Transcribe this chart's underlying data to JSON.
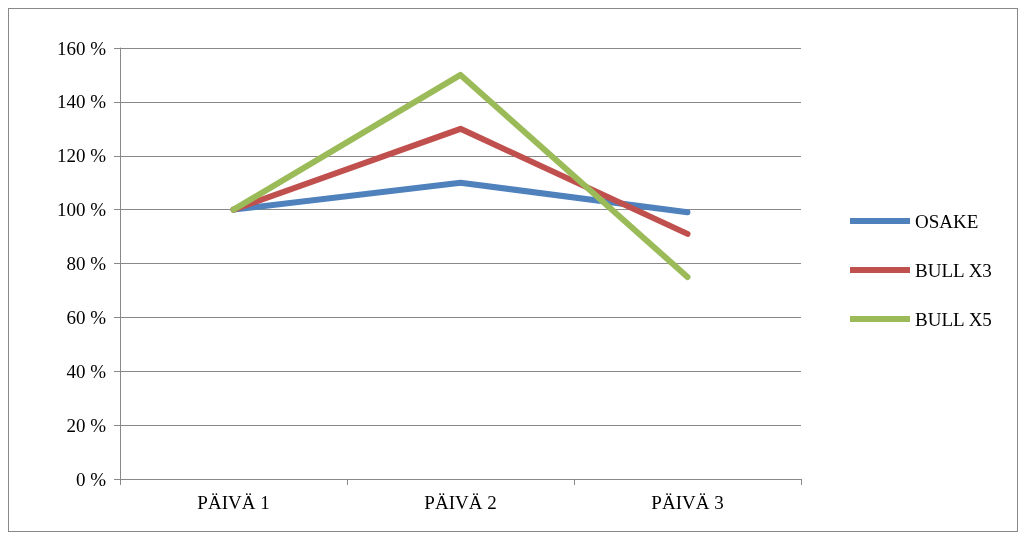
{
  "chart_data": {
    "type": "line",
    "categories": [
      "PÄIVÄ 1",
      "PÄIVÄ 2",
      "PÄIVÄ 3"
    ],
    "series": [
      {
        "name": "OSAKE",
        "color": "#4f81bd",
        "values": [
          100,
          110,
          99
        ]
      },
      {
        "name": "BULL X3",
        "color": "#c0504d",
        "values": [
          100,
          130,
          91
        ]
      },
      {
        "name": "BULL X5",
        "color": "#9bbb59",
        "values": [
          100,
          150,
          75
        ]
      }
    ],
    "ylim": [
      0,
      160
    ],
    "yticks": [
      {
        "value": 0,
        "label": "0 %"
      },
      {
        "value": 20,
        "label": "20 %"
      },
      {
        "value": 40,
        "label": "40 %"
      },
      {
        "value": 60,
        "label": "60 %"
      },
      {
        "value": 80,
        "label": "80 %"
      },
      {
        "value": 100,
        "label": "100 %"
      },
      {
        "value": 120,
        "label": "120 %"
      },
      {
        "value": 140,
        "label": "140 %"
      },
      {
        "value": 160,
        "label": "160 %"
      }
    ],
    "grid": "y",
    "legend": "right",
    "marker": "none",
    "line_style": "solid"
  }
}
